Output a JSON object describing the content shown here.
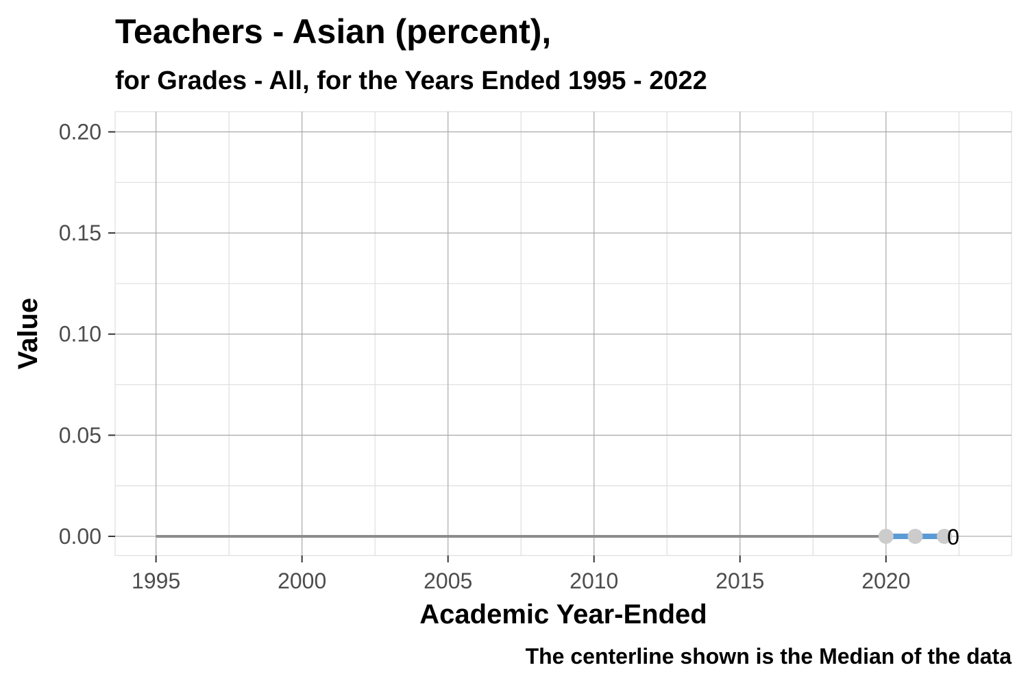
{
  "chart_data": {
    "type": "line",
    "title": "Teachers - Asian (percent),",
    "subtitle": "for Grades - All, for the Years Ended 1995  -  2022",
    "xlabel": "Academic Year-Ended",
    "ylabel": "Value",
    "caption": "The centerline shown is the Median of the data",
    "xlim": [
      1993.6,
      2024.3
    ],
    "ylim": [
      -0.0095,
      0.21
    ],
    "x_ticks": [
      1995,
      2000,
      2005,
      2010,
      2015,
      2020
    ],
    "x_tick_labels": [
      "1995",
      "2000",
      "2005",
      "2010",
      "2015",
      "2020"
    ],
    "y_ticks": [
      0,
      0.05,
      0.1,
      0.15,
      0.2
    ],
    "y_tick_labels": [
      "0.00",
      "0.05",
      "0.10",
      "0.15",
      "0.20"
    ],
    "grid": true,
    "centerline": {
      "value": 0,
      "x_start": 1995,
      "x_end": 2022,
      "color": "#8c8c8c"
    },
    "series": [
      {
        "x": [
          2020,
          2021,
          2022
        ],
        "y": [
          0,
          0,
          0
        ],
        "line_color": "#5b9bd5",
        "point_color": "#cccccc"
      }
    ],
    "end_label": {
      "x": 2022,
      "y": 0,
      "text": "0"
    }
  }
}
